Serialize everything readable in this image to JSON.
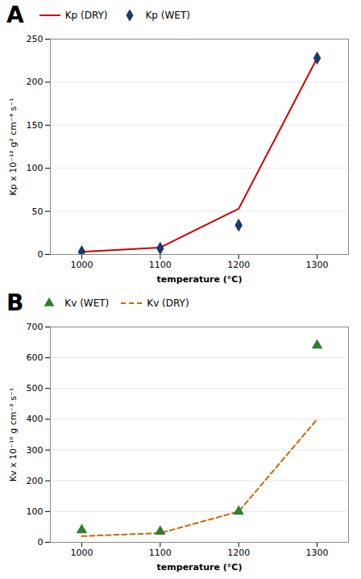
{
  "chart_data": [
    {
      "type": "line",
      "title": "A",
      "xlabel": "temperature (°C)",
      "ylabel": "Kp x 10⁻¹² g² cm⁻⁴ s⁻¹",
      "x": [
        1000,
        1100,
        1200,
        1300
      ],
      "series": [
        {
          "name": "Kp (DRY)",
          "type": "line",
          "color": "#cc0000",
          "line_style": "solid",
          "values": [
            3,
            8,
            53,
            228
          ]
        },
        {
          "name": "Kp (WET)",
          "type": "scatter",
          "color": "#1a3a6e",
          "marker": "diamond",
          "values": [
            3,
            7,
            34,
            228
          ]
        }
      ],
      "xlim": [
        960,
        1340
      ],
      "xticks": [
        1000,
        1100,
        1200,
        1300
      ],
      "ylim": [
        0,
        250
      ],
      "yticks": [
        0,
        50,
        100,
        150,
        200,
        250
      ],
      "grid": "y",
      "legend": "upper left"
    },
    {
      "type": "line",
      "title": "B",
      "xlabel": "temperature (°C)",
      "ylabel": "Kv x 10⁻¹⁰ g cm⁻² s⁻¹",
      "x": [
        1000,
        1100,
        1200,
        1300
      ],
      "series": [
        {
          "name": "Kv (WET)",
          "type": "scatter",
          "color": "#2e7d32",
          "marker": "triangle",
          "values": [
            40,
            35,
            100,
            640
          ]
        },
        {
          "name": "Kv (DRY)",
          "type": "line",
          "color": "#cc6600",
          "line_style": "dashed",
          "values": [
            20,
            30,
            100,
            400
          ]
        }
      ],
      "xlim": [
        960,
        1340
      ],
      "xticks": [
        1000,
        1100,
        1200,
        1300
      ],
      "ylim": [
        0,
        700
      ],
      "yticks": [
        0,
        100,
        200,
        300,
        400,
        500,
        600,
        700
      ],
      "grid": "y",
      "legend": "upper left"
    }
  ]
}
